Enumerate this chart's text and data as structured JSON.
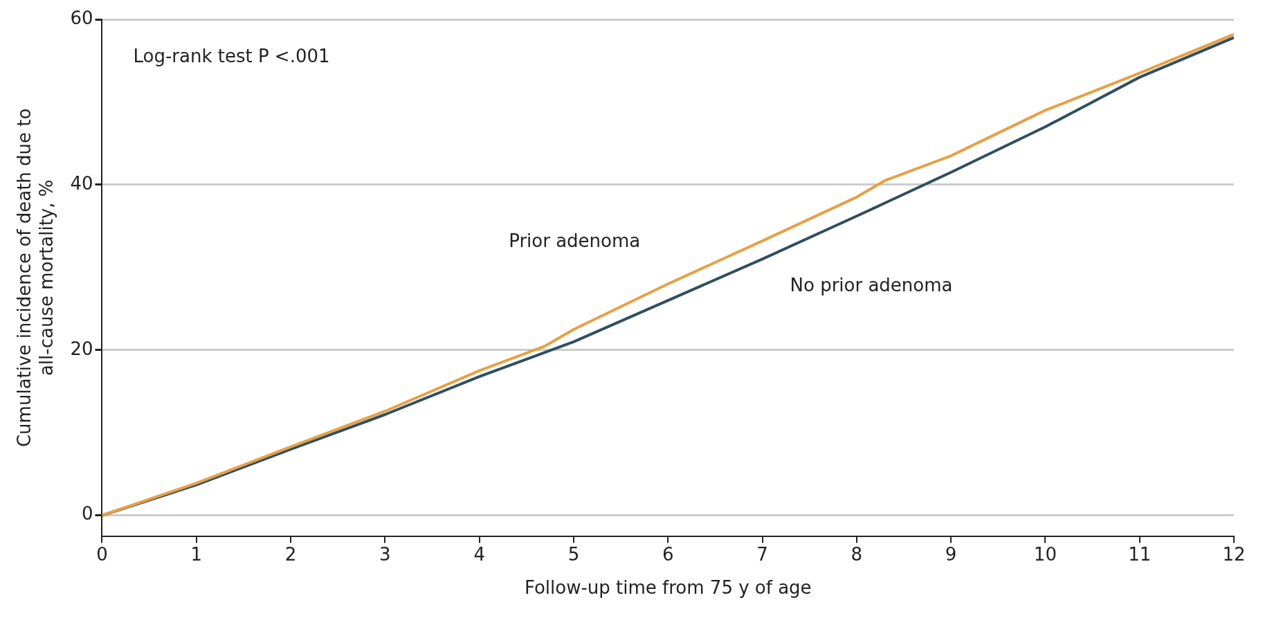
{
  "chart_data": {
    "type": "line",
    "xlabel": "Follow-up time from 75 y of age",
    "ylabel": "Cumulative incidence of death due to\nall-cause mortality, %",
    "xlim": [
      0,
      12
    ],
    "ylim": [
      -2.5,
      60
    ],
    "xticks": [
      0,
      1,
      2,
      3,
      4,
      5,
      6,
      7,
      8,
      9,
      10,
      11,
      12
    ],
    "yticks": [
      0,
      20,
      40,
      60
    ],
    "grid": "y",
    "marker": "none",
    "line_style": "solid",
    "legend": false,
    "annotations": [
      "Log-rank test P <.001"
    ],
    "series": [
      {
        "name": "Prior adenoma",
        "color": "#e8a046",
        "x": [
          0,
          1,
          2,
          3,
          4,
          4.7,
          5,
          6,
          7,
          8,
          8.3,
          9,
          10,
          11,
          12
        ],
        "values": [
          0,
          3.9,
          8.3,
          12.6,
          17.5,
          20.5,
          22.5,
          28,
          33.2,
          38.5,
          40.5,
          43.5,
          49,
          53.5,
          58.2
        ]
      },
      {
        "name": "No prior adenoma",
        "color": "#2f4f5f",
        "x": [
          0,
          1,
          2,
          3,
          4,
          5,
          6,
          7,
          8,
          9,
          10,
          10.5,
          11,
          12
        ],
        "values": [
          0,
          3.7,
          8,
          12.2,
          16.8,
          21,
          26,
          31,
          36.2,
          41.5,
          47,
          50,
          53,
          57.8
        ]
      }
    ]
  }
}
